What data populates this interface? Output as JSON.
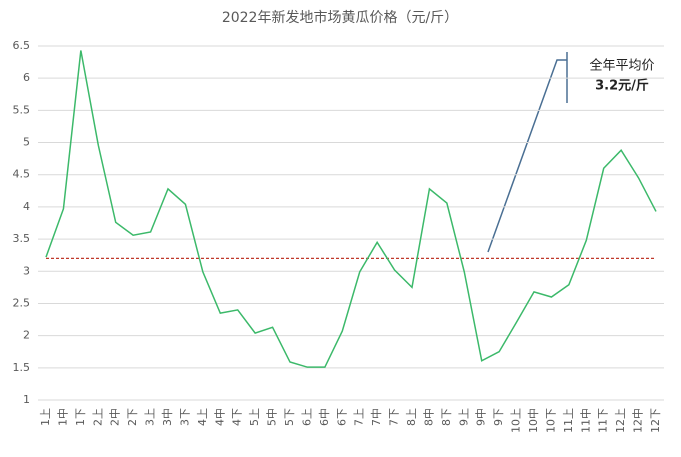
{
  "chart_data": {
    "type": "line",
    "title": "2022年新发地市场黄瓜价格（元/斤）",
    "categories": [
      "1上",
      "1中",
      "1下",
      "2上",
      "2中",
      "2下",
      "3上",
      "3中",
      "3下",
      "4上",
      "4中",
      "4下",
      "5上",
      "5中",
      "5下",
      "6上",
      "6中",
      "6下",
      "7上",
      "7中",
      "7下",
      "8上",
      "8中",
      "8下",
      "9上",
      "9中",
      "9下",
      "10上",
      "10中",
      "10下",
      "11上",
      "11中",
      "11下",
      "12上",
      "12中",
      "12下"
    ],
    "series": [
      {
        "color": "#3cb96a",
        "values": [
          3.22,
          3.97,
          6.43,
          4.96,
          3.76,
          3.56,
          3.61,
          4.28,
          4.04,
          2.99,
          2.35,
          2.4,
          2.04,
          2.13,
          1.59,
          1.51,
          1.51,
          2.07,
          2.99,
          3.45,
          3.02,
          2.75,
          4.28,
          4.06,
          2.99,
          1.61,
          1.75,
          2.21,
          2.68,
          2.6,
          2.79,
          3.48,
          4.6,
          4.88,
          4.45,
          3.93
        ]
      }
    ],
    "average_line": {
      "value": 3.2,
      "color": "#c0392b"
    },
    "annotation": [
      "全年平均价",
      "3.2元/斤"
    ],
    "ylim": [
      1,
      6.5
    ],
    "yticks": [
      1,
      1.5,
      2,
      2.5,
      3,
      3.5,
      4,
      4.5,
      5,
      5.5,
      6,
      6.5
    ],
    "grid": true
  }
}
